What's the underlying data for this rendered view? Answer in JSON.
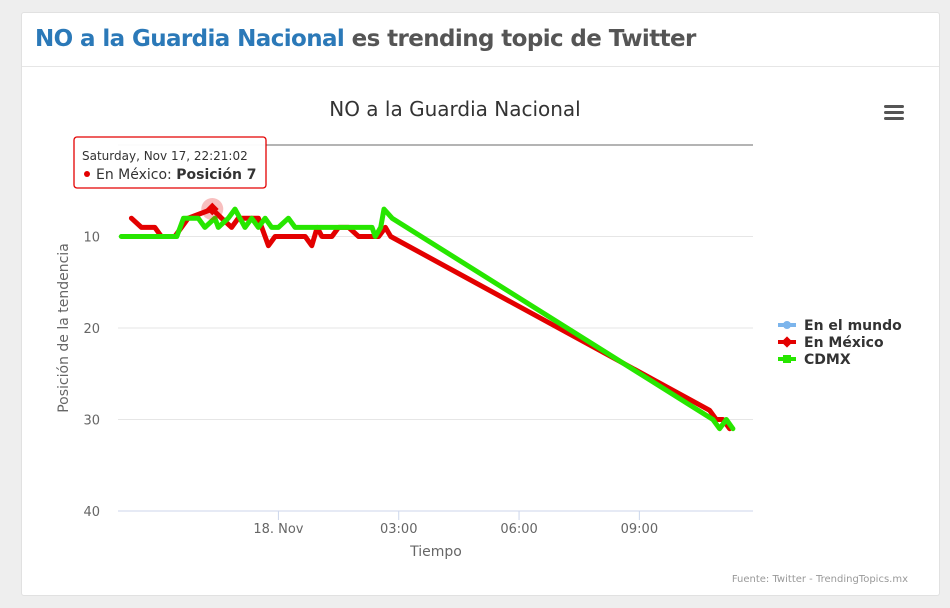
{
  "header": {
    "highlight": "NO a la Guardia Nacional",
    "rest": "es trending topic de Twitter"
  },
  "chart_data": {
    "type": "line",
    "title": "NO a la Guardia Nacional",
    "xlabel": "Tiempo",
    "ylabel": "Posición de la tendencia",
    "y_reversed": true,
    "ylim": [
      0,
      40
    ],
    "y_ticks": [
      10,
      20,
      30,
      40
    ],
    "xlim": [
      "2018-11-17T20:00:00",
      "2018-11-18T11:50:00"
    ],
    "x_ticks": [
      {
        "label": "18. Nov",
        "x": "2018-11-18T00:00:00"
      },
      {
        "label": "03:00",
        "x": "2018-11-18T03:00:00"
      },
      {
        "label": "06:00",
        "x": "2018-11-18T06:00:00"
      },
      {
        "label": "09:00",
        "x": "2018-11-18T09:00:00"
      }
    ],
    "grid": true,
    "legend_position": "right",
    "series": [
      {
        "name": "En el mundo",
        "color": "#7cb5ec",
        "points": []
      },
      {
        "name": "En México",
        "color": "#e30000",
        "points": [
          [
            "2018-11-17T20:20:00",
            8
          ],
          [
            "2018-11-17T20:35:00",
            9
          ],
          [
            "2018-11-17T20:55:00",
            9
          ],
          [
            "2018-11-17T21:05:00",
            10
          ],
          [
            "2018-11-17T21:25:00",
            10
          ],
          [
            "2018-11-17T21:35:00",
            9
          ],
          [
            "2018-11-17T21:45:00",
            8
          ],
          [
            "2018-11-17T22:21:02",
            7
          ],
          [
            "2018-11-17T22:35:00",
            8
          ],
          [
            "2018-11-17T22:50:00",
            9
          ],
          [
            "2018-11-17T23:00:00",
            8
          ],
          [
            "2018-11-17T23:15:00",
            8
          ],
          [
            "2018-11-17T23:30:00",
            8
          ],
          [
            "2018-11-17T23:40:00",
            10
          ],
          [
            "2018-11-17T23:45:00",
            11
          ],
          [
            "2018-11-17T23:55:00",
            10
          ],
          [
            "2018-11-18T00:40:00",
            10
          ],
          [
            "2018-11-18T00:50:00",
            11
          ],
          [
            "2018-11-18T00:58:00",
            9
          ],
          [
            "2018-11-18T01:05:00",
            10
          ],
          [
            "2018-11-18T01:20:00",
            10
          ],
          [
            "2018-11-18T01:30:00",
            9
          ],
          [
            "2018-11-18T01:45:00",
            9
          ],
          [
            "2018-11-18T02:00:00",
            10
          ],
          [
            "2018-11-18T02:30:00",
            10
          ],
          [
            "2018-11-18T02:40:00",
            9
          ],
          [
            "2018-11-18T02:48:00",
            10
          ],
          [
            "2018-11-18T10:45:00",
            29
          ],
          [
            "2018-11-18T10:55:00",
            30
          ],
          [
            "2018-11-18T11:05:00",
            30
          ],
          [
            "2018-11-18T11:15:00",
            31
          ]
        ]
      },
      {
        "name": "CDMX",
        "color": "#27e600",
        "points": [
          [
            "2018-11-17T20:05:00",
            10
          ],
          [
            "2018-11-17T21:10:00",
            10
          ],
          [
            "2018-11-17T21:28:00",
            10
          ],
          [
            "2018-11-17T21:38:00",
            8
          ],
          [
            "2018-11-17T22:00:00",
            8
          ],
          [
            "2018-11-17T22:10:00",
            9
          ],
          [
            "2018-11-17T22:25:00",
            8
          ],
          [
            "2018-11-17T22:30:00",
            9
          ],
          [
            "2018-11-17T22:45:00",
            8
          ],
          [
            "2018-11-17T22:55:00",
            7
          ],
          [
            "2018-11-17T23:10:00",
            9
          ],
          [
            "2018-11-17T23:20:00",
            8
          ],
          [
            "2018-11-17T23:30:00",
            9
          ],
          [
            "2018-11-17T23:40:00",
            8
          ],
          [
            "2018-11-17T23:50:00",
            9
          ],
          [
            "2018-11-18T00:00:00",
            9
          ],
          [
            "2018-11-18T00:15:00",
            8
          ],
          [
            "2018-11-18T00:25:00",
            9
          ],
          [
            "2018-11-18T01:40:00",
            9
          ],
          [
            "2018-11-18T02:20:00",
            9
          ],
          [
            "2018-11-18T02:25:00",
            10
          ],
          [
            "2018-11-18T02:33:00",
            9
          ],
          [
            "2018-11-18T02:38:00",
            7
          ],
          [
            "2018-11-18T02:50:00",
            8
          ],
          [
            "2018-11-18T10:50:00",
            30
          ],
          [
            "2018-11-18T11:00:00",
            31
          ],
          [
            "2018-11-18T11:10:00",
            30
          ],
          [
            "2018-11-18T11:20:00",
            31
          ]
        ]
      }
    ],
    "tooltip": {
      "date": "Saturday, Nov 17, 22:21:02",
      "series_label": "En México:",
      "value_label": "Posición 7",
      "x": "2018-11-17T22:21:02",
      "y": 7
    },
    "credits": "Fuente: Twitter - TrendingTopics.mx"
  }
}
